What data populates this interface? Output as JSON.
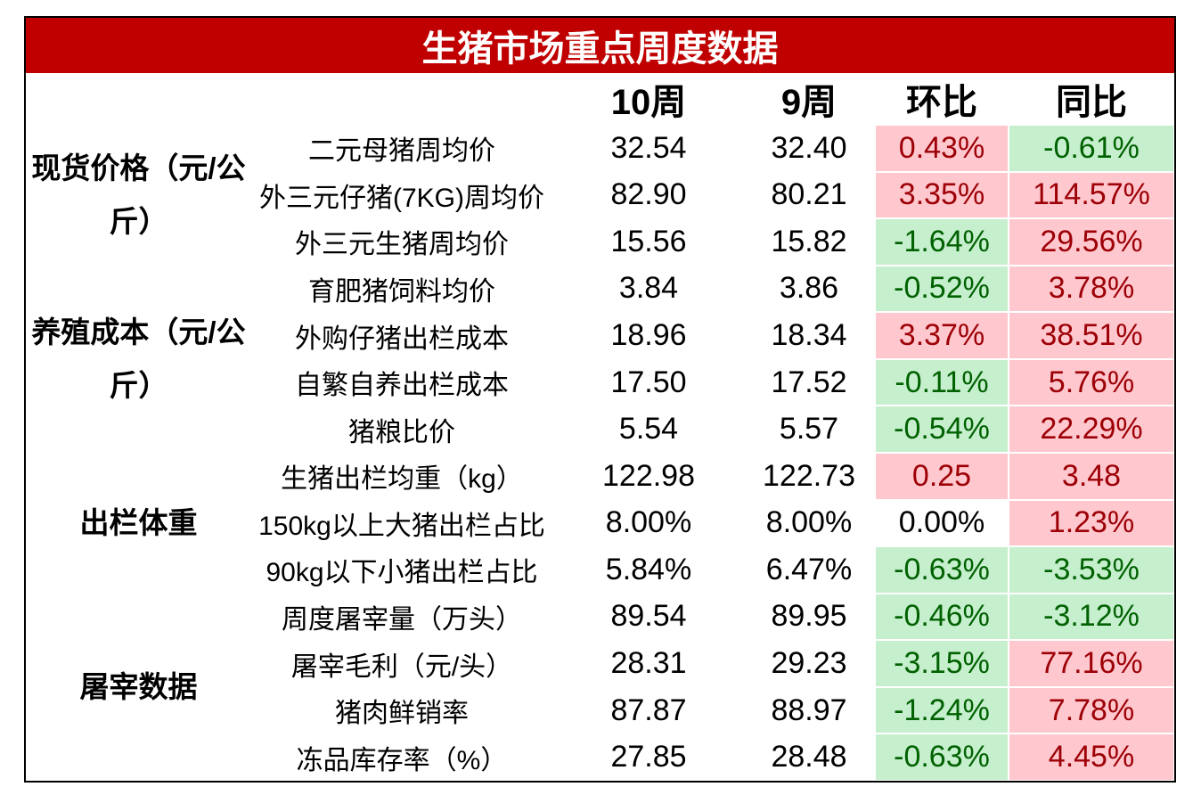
{
  "header": {
    "title": "生猪市场重点周度数据",
    "columns": [
      "10周",
      "9周",
      "环比",
      "同比"
    ]
  },
  "groups": [
    {
      "label": "现货价格（元/公斤）",
      "rows": [
        {
          "name": "二元母猪周均价",
          "cur": "32.54",
          "prev": "32.40",
          "hb": "0.43%",
          "tb": "-0.61%",
          "hb_bg": "#ffc7ce",
          "hb_fg": "#9c0006",
          "tb_bg": "#c6efce",
          "tb_fg": "#006100"
        },
        {
          "name": "外三元仔猪(7KG)周均价",
          "cur": "82.90",
          "prev": "80.21",
          "hb": "3.35%",
          "tb": "114.57%",
          "hb_bg": "#ffc7ce",
          "hb_fg": "#9c0006",
          "tb_bg": "#ffc7ce",
          "tb_fg": "#9c0006"
        },
        {
          "name": "外三元生猪周均价",
          "cur": "15.56",
          "prev": "15.82",
          "hb": "-1.64%",
          "tb": "29.56%",
          "hb_bg": "#c6efce",
          "hb_fg": "#006100",
          "tb_bg": "#ffc7ce",
          "tb_fg": "#9c0006"
        }
      ]
    },
    {
      "label": "养殖成本（元/公斤）",
      "rows": [
        {
          "name": "育肥猪饲料均价",
          "cur": "3.84",
          "prev": "3.86",
          "hb": "-0.52%",
          "tb": "3.78%",
          "hb_bg": "#c6efce",
          "hb_fg": "#006100",
          "tb_bg": "#ffc7ce",
          "tb_fg": "#9c0006"
        },
        {
          "name": "外购仔猪出栏成本",
          "cur": "18.96",
          "prev": "18.34",
          "hb": "3.37%",
          "tb": "38.51%",
          "hb_bg": "#ffc7ce",
          "hb_fg": "#9c0006",
          "tb_bg": "#ffc7ce",
          "tb_fg": "#9c0006"
        },
        {
          "name": "自繁自养出栏成本",
          "cur": "17.50",
          "prev": "17.52",
          "hb": "-0.11%",
          "tb": "5.76%",
          "hb_bg": "#c6efce",
          "hb_fg": "#006100",
          "tb_bg": "#ffc7ce",
          "tb_fg": "#9c0006"
        },
        {
          "name": "猪粮比价",
          "cur": "5.54",
          "prev": "5.57",
          "hb": "-0.54%",
          "tb": "22.29%",
          "hb_bg": "#c6efce",
          "hb_fg": "#006100",
          "tb_bg": "#ffc7ce",
          "tb_fg": "#9c0006"
        }
      ]
    },
    {
      "label": "出栏体重",
      "rows": [
        {
          "name": "生猪出栏均重（kg）",
          "cur": "122.98",
          "prev": "122.73",
          "hb": "0.25",
          "tb": "3.48",
          "hb_bg": "#ffc7ce",
          "hb_fg": "#9c0006",
          "tb_bg": "#ffc7ce",
          "tb_fg": "#9c0006"
        },
        {
          "name": "150kg以上大猪出栏占比",
          "cur": "8.00%",
          "prev": "8.00%",
          "hb": "0.00%",
          "tb": "1.23%",
          "hb_bg": "#ffffff",
          "hb_fg": "#000000",
          "tb_bg": "#ffc7ce",
          "tb_fg": "#9c0006"
        },
        {
          "name": "90kg以下小猪出栏占比",
          "cur": "5.84%",
          "prev": "6.47%",
          "hb": "-0.63%",
          "tb": "-3.53%",
          "hb_bg": "#c6efce",
          "hb_fg": "#006100",
          "tb_bg": "#c6efce",
          "tb_fg": "#006100"
        }
      ]
    },
    {
      "label": "屠宰数据",
      "rows": [
        {
          "name": "周度屠宰量（万头）",
          "cur": "89.54",
          "prev": "89.95",
          "hb": "-0.46%",
          "tb": "-3.12%",
          "hb_bg": "#c6efce",
          "hb_fg": "#006100",
          "tb_bg": "#c6efce",
          "tb_fg": "#006100"
        },
        {
          "name": "屠宰毛利（元/头）",
          "cur": "28.31",
          "prev": "29.23",
          "hb": "-3.15%",
          "tb": "77.16%",
          "hb_bg": "#c6efce",
          "hb_fg": "#006100",
          "tb_bg": "#ffc7ce",
          "tb_fg": "#9c0006"
        },
        {
          "name": "猪肉鲜销率",
          "cur": "87.87",
          "prev": "88.97",
          "hb": "-1.24%",
          "tb": "7.78%",
          "hb_bg": "#c6efce",
          "hb_fg": "#006100",
          "tb_bg": "#ffc7ce",
          "tb_fg": "#9c0006"
        },
        {
          "name": "冻品库存率（%）",
          "cur": "27.85",
          "prev": "28.48",
          "hb": "-0.63%",
          "tb": "4.45%",
          "hb_bg": "#c6efce",
          "hb_fg": "#006100",
          "tb_bg": "#ffc7ce",
          "tb_fg": "#9c0006"
        }
      ]
    }
  ]
}
